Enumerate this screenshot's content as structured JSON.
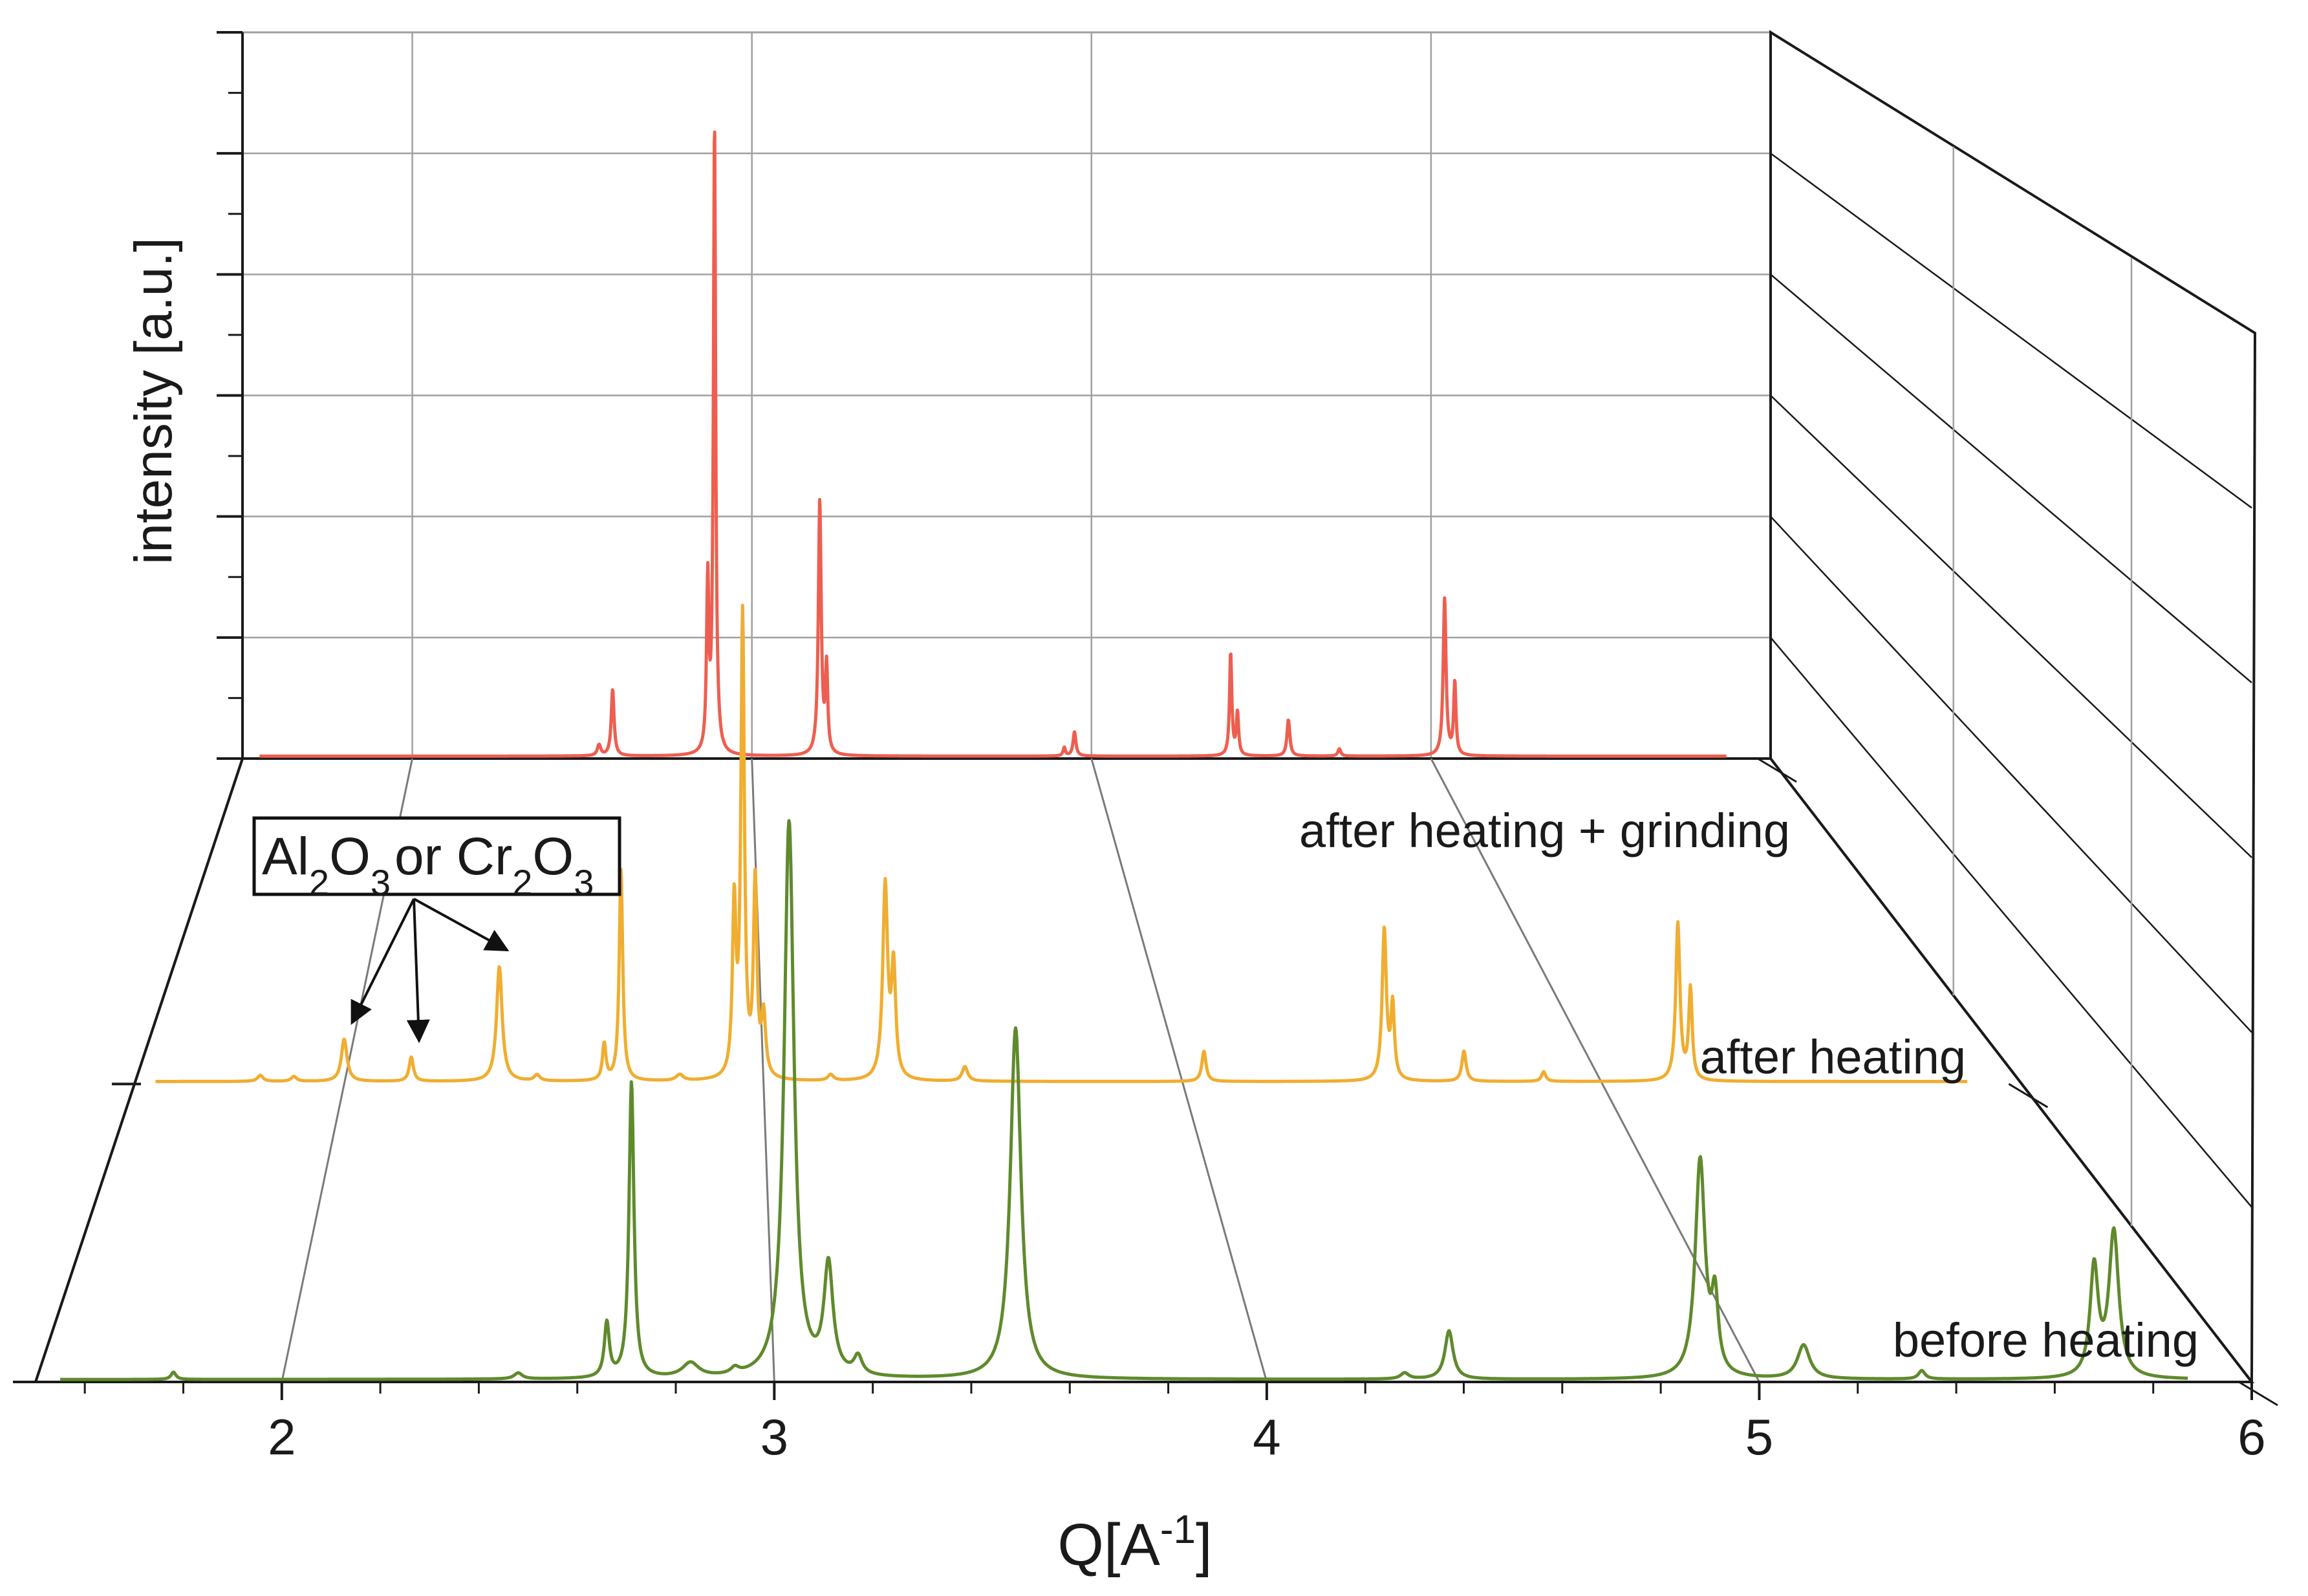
{
  "chart_data": {
    "type": "line",
    "style": "3d-waterfall",
    "title": "",
    "xlabel": "Q[A",
    "xlabel_sup": "-1",
    "xlabel_close": "]",
    "ylabel": "intensity [a.u.]",
    "xlim": [
      1.5,
      6
    ],
    "ylim": [
      0,
      6
    ],
    "x_ticks": [
      "2",
      "3",
      "4",
      "5",
      "6"
    ],
    "x_tick_values": [
      2,
      3,
      4,
      5,
      6
    ],
    "grid": true,
    "series": [
      {
        "name": "before heating",
        "color": "#5f8a2c",
        "depth": 0,
        "x_range": [
          1.55,
          5.87
        ],
        "baseline": 0.02,
        "peaks": [
          {
            "x": 1.78,
            "h": 0.06,
            "w": 0.006
          },
          {
            "x": 2.48,
            "h": 0.05,
            "w": 0.01
          },
          {
            "x": 2.66,
            "h": 0.45,
            "w": 0.006
          },
          {
            "x": 2.71,
            "h": 2.45,
            "w": 0.006
          },
          {
            "x": 2.83,
            "h": 0.12,
            "w": 0.02
          },
          {
            "x": 2.92,
            "h": 0.05,
            "w": 0.01
          },
          {
            "x": 3.03,
            "h": 4.6,
            "w": 0.012
          },
          {
            "x": 3.11,
            "h": 0.9,
            "w": 0.011
          },
          {
            "x": 3.17,
            "h": 0.15,
            "w": 0.01
          },
          {
            "x": 3.49,
            "h": 2.9,
            "w": 0.013
          },
          {
            "x": 4.28,
            "h": 0.05,
            "w": 0.01
          },
          {
            "x": 4.37,
            "h": 0.4,
            "w": 0.01
          },
          {
            "x": 4.88,
            "h": 1.8,
            "w": 0.012
          },
          {
            "x": 4.91,
            "h": 0.6,
            "w": 0.008
          },
          {
            "x": 5.09,
            "h": 0.28,
            "w": 0.015
          },
          {
            "x": 5.33,
            "h": 0.07,
            "w": 0.008
          },
          {
            "x": 5.68,
            "h": 0.9,
            "w": 0.01
          },
          {
            "x": 5.72,
            "h": 1.2,
            "w": 0.012
          }
        ]
      },
      {
        "name": "after heating",
        "color": "#f0ad30",
        "depth": 1,
        "x_range": [
          1.55,
          5.87
        ],
        "baseline": 0.02,
        "peaks": [
          {
            "x": 1.8,
            "h": 0.05,
            "w": 0.008
          },
          {
            "x": 1.88,
            "h": 0.04,
            "w": 0.008
          },
          {
            "x": 2.0,
            "h": 0.35,
            "w": 0.008
          },
          {
            "x": 2.16,
            "h": 0.2,
            "w": 0.006
          },
          {
            "x": 2.37,
            "h": 0.95,
            "w": 0.008
          },
          {
            "x": 2.46,
            "h": 0.05,
            "w": 0.008
          },
          {
            "x": 2.62,
            "h": 0.3,
            "w": 0.005
          },
          {
            "x": 2.66,
            "h": 1.75,
            "w": 0.005
          },
          {
            "x": 2.8,
            "h": 0.05,
            "w": 0.01
          },
          {
            "x": 2.93,
            "h": 1.4,
            "w": 0.005
          },
          {
            "x": 2.95,
            "h": 3.8,
            "w": 0.005
          },
          {
            "x": 2.98,
            "h": 1.6,
            "w": 0.005
          },
          {
            "x": 3.0,
            "h": 0.5,
            "w": 0.006
          },
          {
            "x": 3.16,
            "h": 0.05,
            "w": 0.008
          },
          {
            "x": 3.29,
            "h": 1.6,
            "w": 0.007
          },
          {
            "x": 3.31,
            "h": 0.9,
            "w": 0.006
          },
          {
            "x": 3.48,
            "h": 0.12,
            "w": 0.008
          },
          {
            "x": 4.05,
            "h": 0.25,
            "w": 0.006
          },
          {
            "x": 4.48,
            "h": 1.25,
            "w": 0.006
          },
          {
            "x": 4.5,
            "h": 0.6,
            "w": 0.005
          },
          {
            "x": 4.67,
            "h": 0.25,
            "w": 0.006
          },
          {
            "x": 4.86,
            "h": 0.08,
            "w": 0.006
          },
          {
            "x": 5.18,
            "h": 1.3,
            "w": 0.006
          },
          {
            "x": 5.21,
            "h": 0.75,
            "w": 0.005
          }
        ]
      },
      {
        "name": "after heating + grinding",
        "color": "#ee5e50",
        "depth": 2,
        "x_range": [
          1.55,
          5.87
        ],
        "baseline": 0.02,
        "peaks": [
          {
            "x": 2.55,
            "h": 0.09,
            "w": 0.006
          },
          {
            "x": 2.59,
            "h": 0.55,
            "w": 0.005
          },
          {
            "x": 2.87,
            "h": 1.4,
            "w": 0.004
          },
          {
            "x": 2.89,
            "h": 5.2,
            "w": 0.004
          },
          {
            "x": 3.2,
            "h": 2.1,
            "w": 0.005
          },
          {
            "x": 3.22,
            "h": 0.7,
            "w": 0.004
          },
          {
            "x": 3.92,
            "h": 0.07,
            "w": 0.004
          },
          {
            "x": 3.95,
            "h": 0.2,
            "w": 0.005
          },
          {
            "x": 4.41,
            "h": 0.85,
            "w": 0.004
          },
          {
            "x": 4.43,
            "h": 0.35,
            "w": 0.004
          },
          {
            "x": 4.58,
            "h": 0.3,
            "w": 0.005
          },
          {
            "x": 4.73,
            "h": 0.06,
            "w": 0.005
          },
          {
            "x": 5.04,
            "h": 1.3,
            "w": 0.005
          },
          {
            "x": 5.07,
            "h": 0.6,
            "w": 0.004
          }
        ]
      }
    ],
    "annotations": {
      "box_parts": [
        {
          "text": "Al",
          "sub": false
        },
        {
          "text": "2",
          "sub": true
        },
        {
          "text": "O",
          "sub": false
        },
        {
          "text": "3",
          "sub": true
        },
        {
          "text": "or Cr",
          "sub": false
        },
        {
          "text": "2",
          "sub": true
        },
        {
          "text": "O",
          "sub": false
        },
        {
          "text": "3",
          "sub": true
        }
      ],
      "arrow_targets": [
        {
          "series": "after heating",
          "x": 2.0
        },
        {
          "series": "after heating",
          "x": 2.16
        },
        {
          "series": "after heating",
          "x": 2.37
        }
      ]
    }
  }
}
